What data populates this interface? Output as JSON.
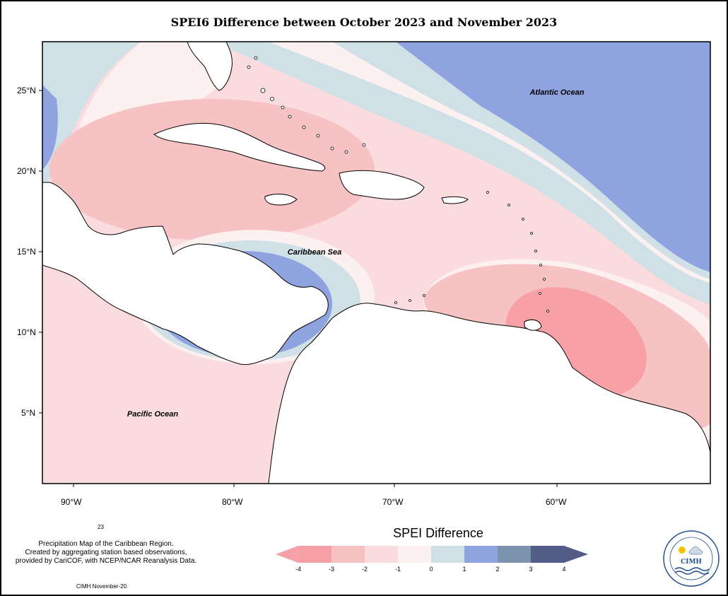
{
  "title": "SPEI6 Difference between October 2023 and November 2023",
  "labels": {
    "atlantic": "Atlantic Ocean",
    "caribbean": "Caribbean Sea",
    "pacific": "Pacific Ocean"
  },
  "axes": {
    "lat_ticks": [
      "25°N",
      "20°N",
      "15°N",
      "10°N",
      "5°N"
    ],
    "lon_ticks": [
      "90°W",
      "80°W",
      "70°W",
      "60°W"
    ]
  },
  "legend": {
    "title": "SPEI Difference",
    "ticks": [
      "-4",
      "-3",
      "-2",
      "-1",
      "0",
      "1",
      "2",
      "3",
      "4"
    ],
    "colors": [
      "#f7a1a6",
      "#f6c2c3",
      "#fadcdf",
      "#fdf0f1",
      "#cfe0e6",
      "#8fa3e0",
      "#7b93ad",
      "#535b87"
    ]
  },
  "notes": {
    "line1": "Precipitation Map of the Caribbean Region.",
    "line2": "Created by aggregating station based observations,",
    "line3": "provided by CariCOF, with NCEP/NCAR Reanalysis Data.",
    "credit": "CIMH November-20.",
    "small": "23"
  },
  "logo": {
    "text": "CIMH",
    "ring_top": "Caribbean Institute for",
    "ring_bottom": "Meteorology and Hydrology"
  }
}
